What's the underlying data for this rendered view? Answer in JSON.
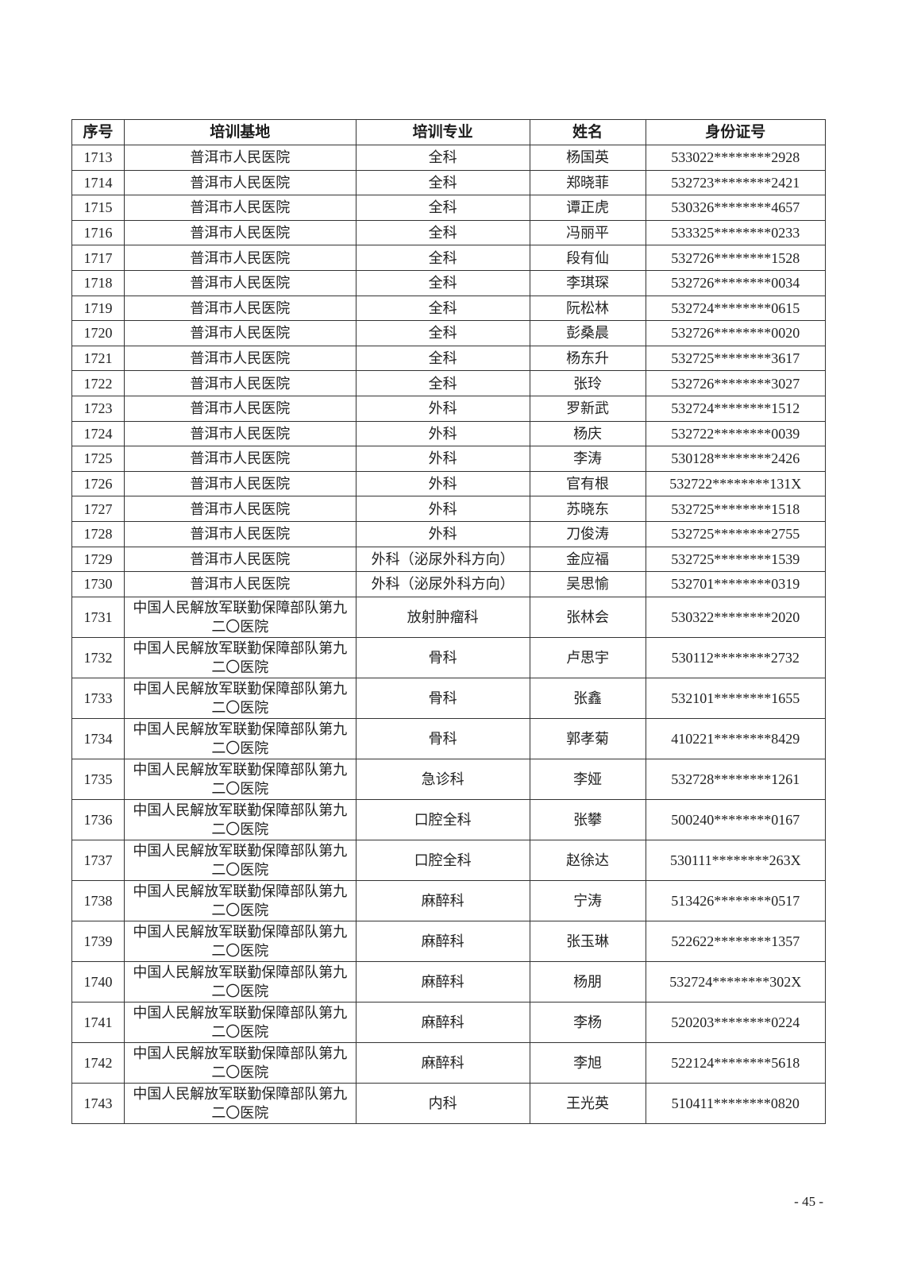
{
  "page": {
    "number_label": "- 45 -"
  },
  "colors": {
    "background": "#ffffff",
    "text": "#222222",
    "border": "#333333"
  },
  "table": {
    "headers": [
      "序号",
      "培训基地",
      "培训专业",
      "姓名",
      "身份证号"
    ],
    "rows": [
      [
        "1713",
        "普洱市人民医院",
        "全科",
        "杨国英",
        "533022********2928"
      ],
      [
        "1714",
        "普洱市人民医院",
        "全科",
        "郑晓菲",
        "532723********2421"
      ],
      [
        "1715",
        "普洱市人民医院",
        "全科",
        "谭正虎",
        "530326********4657"
      ],
      [
        "1716",
        "普洱市人民医院",
        "全科",
        "冯丽平",
        "533325********0233"
      ],
      [
        "1717",
        "普洱市人民医院",
        "全科",
        "段有仙",
        "532726********1528"
      ],
      [
        "1718",
        "普洱市人民医院",
        "全科",
        "李琪琛",
        "532726********0034"
      ],
      [
        "1719",
        "普洱市人民医院",
        "全科",
        "阮松林",
        "532724********0615"
      ],
      [
        "1720",
        "普洱市人民医院",
        "全科",
        "彭桑晨",
        "532726********0020"
      ],
      [
        "1721",
        "普洱市人民医院",
        "全科",
        "杨东升",
        "532725********3617"
      ],
      [
        "1722",
        "普洱市人民医院",
        "全科",
        "张玲",
        "532726********3027"
      ],
      [
        "1723",
        "普洱市人民医院",
        "外科",
        "罗新武",
        "532724********1512"
      ],
      [
        "1724",
        "普洱市人民医院",
        "外科",
        "杨庆",
        "532722********0039"
      ],
      [
        "1725",
        "普洱市人民医院",
        "外科",
        "李涛",
        "530128********2426"
      ],
      [
        "1726",
        "普洱市人民医院",
        "外科",
        "官有根",
        "532722********131X"
      ],
      [
        "1727",
        "普洱市人民医院",
        "外科",
        "苏晓东",
        "532725********1518"
      ],
      [
        "1728",
        "普洱市人民医院",
        "外科",
        "刀俊涛",
        "532725********2755"
      ],
      [
        "1729",
        "普洱市人民医院",
        "外科（泌尿外科方向）",
        "金应福",
        "532725********1539"
      ],
      [
        "1730",
        "普洱市人民医院",
        "外科（泌尿外科方向）",
        "吴思愉",
        "532701********0319"
      ],
      [
        "1731",
        "中国人民解放军联勤保障部队第九二〇医院",
        "放射肿瘤科",
        "张林会",
        "530322********2020"
      ],
      [
        "1732",
        "中国人民解放军联勤保障部队第九二〇医院",
        "骨科",
        "卢思宇",
        "530112********2732"
      ],
      [
        "1733",
        "中国人民解放军联勤保障部队第九二〇医院",
        "骨科",
        "张鑫",
        "532101********1655"
      ],
      [
        "1734",
        "中国人民解放军联勤保障部队第九二〇医院",
        "骨科",
        "郭孝菊",
        "410221********8429"
      ],
      [
        "1735",
        "中国人民解放军联勤保障部队第九二〇医院",
        "急诊科",
        "李娅",
        "532728********1261"
      ],
      [
        "1736",
        "中国人民解放军联勤保障部队第九二〇医院",
        "口腔全科",
        "张攀",
        "500240********0167"
      ],
      [
        "1737",
        "中国人民解放军联勤保障部队第九二〇医院",
        "口腔全科",
        "赵徐达",
        "530111********263X"
      ],
      [
        "1738",
        "中国人民解放军联勤保障部队第九二〇医院",
        "麻醉科",
        "宁涛",
        "513426********0517"
      ],
      [
        "1739",
        "中国人民解放军联勤保障部队第九二〇医院",
        "麻醉科",
        "张玉琳",
        "522622********1357"
      ],
      [
        "1740",
        "中国人民解放军联勤保障部队第九二〇医院",
        "麻醉科",
        "杨朋",
        "532724********302X"
      ],
      [
        "1741",
        "中国人民解放军联勤保障部队第九二〇医院",
        "麻醉科",
        "李杨",
        "520203********0224"
      ],
      [
        "1742",
        "中国人民解放军联勤保障部队第九二〇医院",
        "麻醉科",
        "李旭",
        "522124********5618"
      ],
      [
        "1743",
        "中国人民解放军联勤保障部队第九二〇医院",
        "内科",
        "王光英",
        "510411********0820"
      ]
    ]
  }
}
